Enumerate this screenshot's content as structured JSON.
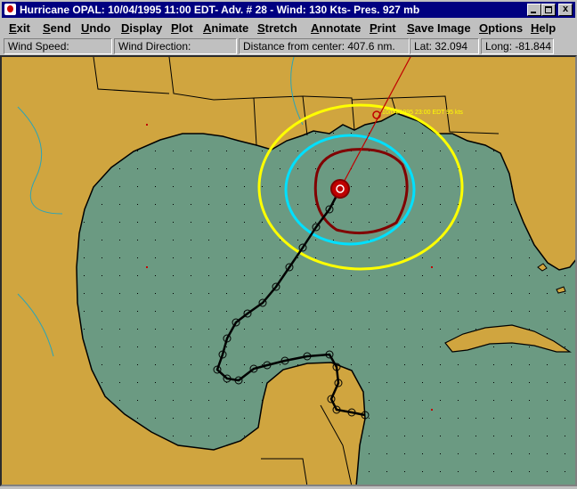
{
  "window": {
    "title": "Hurricane OPAL: 10/04/1995 11:00 EDT- Adv. # 28 - Wind: 130 Kts- Pres. 927 mb"
  },
  "menu": [
    "Exit",
    "Send",
    "Undo",
    "Display",
    "Plot",
    "Animate",
    "Stretch",
    "Annotate",
    "Print",
    "Save Image",
    "Options",
    "Help"
  ],
  "status": {
    "wind_speed": "Wind Speed:",
    "wind_direction": "Wind Direction:",
    "distance": "Distance from center: 407.6 nm.",
    "lat": "Lat: 32.094",
    "long": "Long: -81.844"
  },
  "map": {
    "annotation": "10/04/1995 23:00 EDT 95 kts"
  }
}
